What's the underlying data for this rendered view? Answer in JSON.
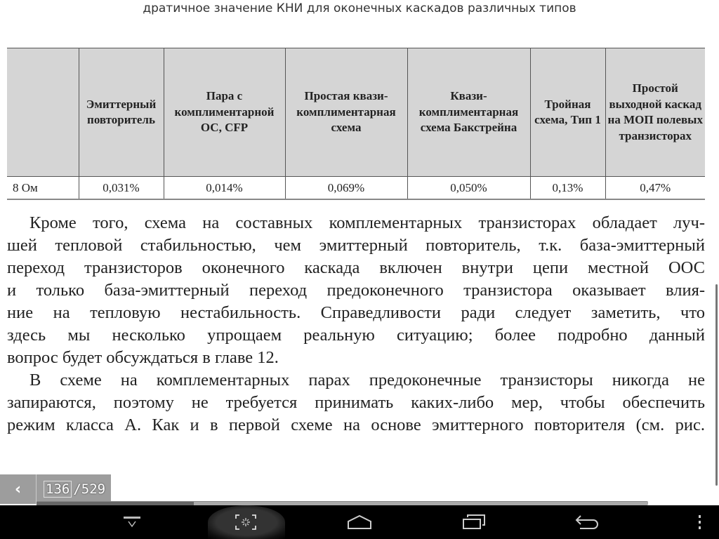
{
  "caption": "дратичное значение КНИ для оконечных каскадов различных типов",
  "table": {
    "headers": [
      "",
      "Эмиттерный повторитель",
      "Пара с комплиментарной ОС, CFP",
      "Простая квази-комплиментарная схема",
      "Квази-комплиментарная схема Бакстрейна",
      "Тройная схема, Тип 1",
      "Простой выходной каскад на МОП полевых транзисторах"
    ],
    "rows": [
      [
        "8 Ом",
        "0,031%",
        "0,014%",
        "0,069%",
        "0,050%",
        "0,13%",
        "0,47%"
      ]
    ]
  },
  "paragraphs": [
    [
      "Кроме того, схема на составных комплементарных транзисторах обладает луч-",
      "шей тепловой стабильностью, чем эмиттерный повторитель, т.к. база-эмиттерный",
      "переход транзисторов оконечного каскада включен внутри цепи местной ООС",
      "и только база-эмиттерный переход предоконечного транзистора оказывает влия-",
      "ние на тепловую нестабильность. Справедливости ради следует заметить, что",
      "здесь мы несколько упрощаем реальную ситуацию; более подробно данный",
      "вопрос будет обсуждаться в главе 12."
    ],
    [
      "В схеме на комплементарных парах предоконечные транзисторы никогда не",
      "запираются, поэтому не требуется принимать каких-либо мер, чтобы обеспечить",
      "режим класса А. Как и в первой схеме на основе эмиттерного повторителя (см. рис."
    ]
  ],
  "pager": {
    "current_page": "136",
    "total_pages": "/529",
    "back_icon": "chevron-left-icon",
    "progress_fraction": 0.257
  },
  "navbar": {
    "icons": [
      "hide-bar-icon",
      "screenshot-icon",
      "home-icon",
      "recent-apps-icon",
      "back-icon",
      "overflow-menu-icon"
    ]
  }
}
